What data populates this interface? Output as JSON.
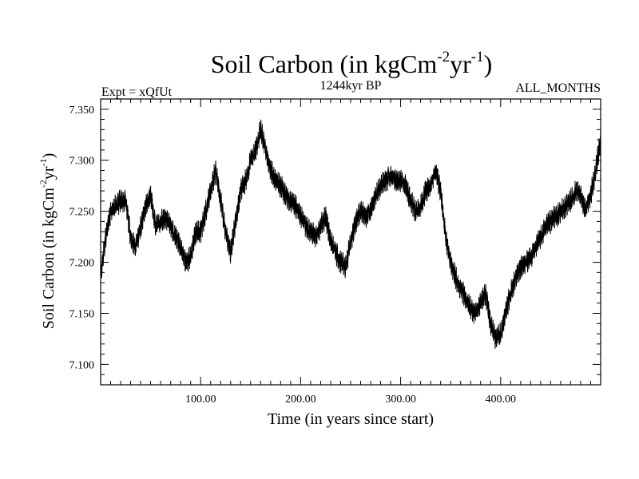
{
  "colors": {
    "line": "#000000",
    "background": "#ffffff"
  },
  "header": {
    "title_base": "Soil Carbon (in kgCm",
    "title_exp1": "-2",
    "title_mid": "yr",
    "title_exp2": "-1",
    "title_close": ")",
    "left_note": "Expt = xQfUt",
    "center_note": "1244kyr BP",
    "right_note": "ALL_MONTHS"
  },
  "chart_data": {
    "type": "line",
    "title": "Soil Carbon (in kgCm-2yr-1)",
    "xlabel": "Time (in years since start)",
    "ylabel": "Soil Carbon (in kgCm-2yr-1)",
    "ylabel_parts": {
      "base": "Soil Carbon (in kgCm",
      "exp1": "-2",
      "mid": "yr",
      "exp2": "-1",
      "close": ")"
    },
    "xlim": [
      0,
      500
    ],
    "ylim": [
      7.08,
      7.36
    ],
    "x_ticks": [
      100,
      200,
      300,
      400
    ],
    "x_tick_labels": [
      "100.00",
      "200.00",
      "300.00",
      "400.00"
    ],
    "y_ticks": [
      7.1,
      7.15,
      7.2,
      7.25,
      7.3,
      7.35
    ],
    "y_tick_labels": [
      "7.100",
      "7.150",
      "7.200",
      "7.250",
      "7.300",
      "7.350"
    ],
    "noise_amplitude": 0.016,
    "series": [
      {
        "name": "Soil Carbon",
        "x": [
          0,
          5,
          10,
          15,
          20,
          25,
          30,
          35,
          40,
          45,
          50,
          55,
          60,
          65,
          70,
          75,
          80,
          85,
          90,
          95,
          100,
          105,
          110,
          115,
          120,
          125,
          130,
          135,
          140,
          145,
          150,
          155,
          160,
          165,
          170,
          175,
          180,
          185,
          190,
          195,
          200,
          205,
          210,
          215,
          220,
          225,
          230,
          235,
          240,
          245,
          250,
          255,
          260,
          265,
          270,
          275,
          280,
          285,
          290,
          295,
          300,
          305,
          310,
          315,
          320,
          325,
          330,
          335,
          340,
          345,
          350,
          355,
          360,
          365,
          370,
          375,
          380,
          385,
          390,
          395,
          400,
          405,
          410,
          415,
          420,
          425,
          430,
          435,
          440,
          445,
          450,
          455,
          460,
          465,
          470,
          475,
          480,
          485,
          490,
          495,
          500
        ],
        "values": [
          7.185,
          7.225,
          7.25,
          7.255,
          7.26,
          7.26,
          7.225,
          7.215,
          7.235,
          7.255,
          7.265,
          7.235,
          7.24,
          7.245,
          7.235,
          7.225,
          7.215,
          7.2,
          7.205,
          7.23,
          7.23,
          7.25,
          7.27,
          7.29,
          7.26,
          7.23,
          7.21,
          7.24,
          7.27,
          7.28,
          7.3,
          7.31,
          7.33,
          7.31,
          7.29,
          7.28,
          7.275,
          7.265,
          7.26,
          7.255,
          7.245,
          7.235,
          7.23,
          7.225,
          7.235,
          7.245,
          7.22,
          7.21,
          7.2,
          7.195,
          7.22,
          7.24,
          7.25,
          7.245,
          7.25,
          7.265,
          7.275,
          7.28,
          7.285,
          7.28,
          7.28,
          7.275,
          7.26,
          7.25,
          7.255,
          7.27,
          7.275,
          7.29,
          7.27,
          7.225,
          7.2,
          7.185,
          7.175,
          7.165,
          7.155,
          7.15,
          7.16,
          7.17,
          7.14,
          7.125,
          7.13,
          7.15,
          7.17,
          7.185,
          7.195,
          7.2,
          7.205,
          7.215,
          7.225,
          7.235,
          7.24,
          7.245,
          7.25,
          7.255,
          7.26,
          7.27,
          7.265,
          7.25,
          7.265,
          7.29,
          7.32
        ]
      }
    ]
  }
}
